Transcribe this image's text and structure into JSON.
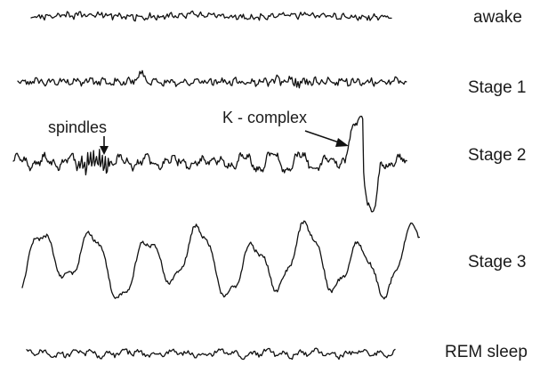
{
  "stages": [
    {
      "id": "awake",
      "label": "awake"
    },
    {
      "id": "stage1",
      "label": "Stage 1"
    },
    {
      "id": "stage2",
      "label": "Stage 2"
    },
    {
      "id": "stage3",
      "label": "Stage 3"
    },
    {
      "id": "rem",
      "label": "REM sleep"
    }
  ],
  "annotations": {
    "spindles": "spindles",
    "k_complex": "K - complex"
  },
  "colors": {
    "trace": "#111111",
    "text": "#1a1a1a",
    "background": "#ffffff"
  }
}
